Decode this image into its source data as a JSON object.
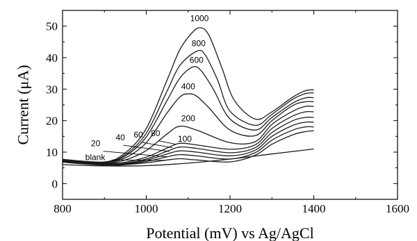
{
  "chart_data": {
    "type": "line",
    "title": "",
    "xlabel": "Potential (mV) vs Ag/AgCl",
    "ylabel": "Current (μA)",
    "xlim": [
      800,
      1600
    ],
    "ylim": [
      -5,
      55
    ],
    "xticks": [
      800,
      1000,
      1200,
      1400,
      1600
    ],
    "yticks": [
      0,
      10,
      20,
      30,
      40,
      50
    ],
    "grid": false,
    "legend": "none",
    "line_color": "#1a1a1a",
    "series": [
      {
        "name": "blank",
        "x": [
          800,
          900,
          1000,
          1100,
          1200,
          1300,
          1400
        ],
        "y": [
          6.0,
          5.6,
          5.7,
          6.5,
          7.8,
          9.4,
          11.0
        ]
      },
      {
        "name": "20",
        "x": [
          800,
          900,
          950,
          1000,
          1050,
          1080,
          1120,
          1200,
          1260,
          1300,
          1350,
          1380,
          1400
        ],
        "y": [
          6.8,
          5.8,
          6.0,
          6.6,
          7.5,
          7.9,
          7.5,
          6.9,
          9.0,
          12.5,
          15.5,
          16.5,
          16.8
        ]
      },
      {
        "name": "40",
        "x": [
          800,
          900,
          950,
          1000,
          1050,
          1080,
          1120,
          1200,
          1260,
          1300,
          1350,
          1380,
          1400
        ],
        "y": [
          6.9,
          5.9,
          6.1,
          7.0,
          8.5,
          9.2,
          8.8,
          7.8,
          9.8,
          13.8,
          17.0,
          18.0,
          18.0
        ]
      },
      {
        "name": "60",
        "x": [
          800,
          900,
          950,
          1000,
          1050,
          1080,
          1120,
          1200,
          1260,
          1300,
          1350,
          1380,
          1400
        ],
        "y": [
          7.0,
          6.0,
          6.3,
          7.4,
          9.4,
          10.4,
          10.0,
          8.8,
          10.6,
          15.0,
          18.5,
          19.5,
          19.5
        ]
      },
      {
        "name": "80",
        "x": [
          800,
          900,
          950,
          1000,
          1050,
          1080,
          1120,
          1200,
          1260,
          1300,
          1350,
          1380,
          1400
        ],
        "y": [
          7.1,
          6.1,
          6.5,
          7.8,
          10.3,
          11.6,
          11.2,
          9.8,
          11.4,
          16.2,
          20.0,
          21.0,
          21.0
        ]
      },
      {
        "name": "100",
        "x": [
          800,
          900,
          950,
          1000,
          1050,
          1080,
          1120,
          1200,
          1260,
          1300,
          1350,
          1380,
          1400
        ],
        "y": [
          7.2,
          6.2,
          6.8,
          8.4,
          11.3,
          12.8,
          12.3,
          10.9,
          12.3,
          17.5,
          21.5,
          22.8,
          22.8
        ]
      },
      {
        "name": "200",
        "x": [
          800,
          900,
          950,
          1000,
          1050,
          1080,
          1120,
          1200,
          1260,
          1300,
          1350,
          1380,
          1400
        ],
        "y": [
          7.3,
          6.3,
          7.5,
          10.5,
          15.8,
          18.2,
          17.0,
          13.0,
          13.3,
          18.8,
          23.0,
          24.5,
          24.5
        ]
      },
      {
        "name": "400",
        "x": [
          800,
          900,
          950,
          1000,
          1050,
          1080,
          1100,
          1120,
          1150,
          1200,
          1260,
          1300,
          1350,
          1380,
          1400
        ],
        "y": [
          7.4,
          6.5,
          8.2,
          13.0,
          22.5,
          27.5,
          28.5,
          27.8,
          24.0,
          17.0,
          15.2,
          20.0,
          24.8,
          26.0,
          26.0
        ]
      },
      {
        "name": "600",
        "x": [
          800,
          900,
          950,
          1000,
          1050,
          1080,
          1110,
          1130,
          1160,
          1200,
          1260,
          1300,
          1350,
          1380,
          1400
        ],
        "y": [
          7.5,
          6.7,
          8.8,
          14.8,
          26.5,
          33.5,
          37.0,
          36.0,
          30.0,
          20.5,
          17.0,
          21.0,
          25.6,
          27.2,
          27.3
        ]
      },
      {
        "name": "800",
        "x": [
          800,
          900,
          950,
          1000,
          1050,
          1080,
          1120,
          1140,
          1170,
          1200,
          1260,
          1300,
          1350,
          1380,
          1400
        ],
        "y": [
          7.6,
          6.8,
          9.2,
          16.0,
          29.5,
          37.5,
          42.0,
          41.0,
          33.0,
          23.0,
          18.5,
          22.0,
          26.8,
          28.6,
          28.8
        ]
      },
      {
        "name": "1000",
        "x": [
          800,
          900,
          950,
          1000,
          1050,
          1080,
          1110,
          1130,
          1150,
          1180,
          1210,
          1260,
          1300,
          1350,
          1380,
          1400
        ],
        "y": [
          7.7,
          6.9,
          9.8,
          17.5,
          33.0,
          42.5,
          48.0,
          49.5,
          47.0,
          37.0,
          26.5,
          20.5,
          22.8,
          27.5,
          29.5,
          29.8
        ]
      }
    ],
    "annotations": [
      {
        "text": "1000",
        "x": 1127,
        "y": 51.6
      },
      {
        "text": "800",
        "x": 1125,
        "y": 43.6
      },
      {
        "text": "600",
        "x": 1120,
        "y": 38.3
      },
      {
        "text": "400",
        "x": 1100,
        "y": 30.0
      },
      {
        "text": "200",
        "x": 1100,
        "y": 19.8
      },
      {
        "text": "100",
        "x": 1092,
        "y": 13.3
      },
      {
        "text": "80",
        "x": 1022,
        "y": 15.1
      },
      {
        "text": "60",
        "x": 981,
        "y": 14.6
      },
      {
        "text": "40",
        "x": 938,
        "y": 13.7
      },
      {
        "text": "20",
        "x": 879,
        "y": 11.9
      },
      {
        "text": "blank",
        "x": 878,
        "y": 7.5
      }
    ],
    "leader_lines": [
      {
        "from": [
          1030,
          13.6
        ],
        "to": [
          1070,
          12.5
        ]
      },
      {
        "from": [
          990,
          13.1
        ],
        "to": [
          1062,
          11.4
        ]
      },
      {
        "from": [
          945,
          12.2
        ],
        "to": [
          1055,
          10.2
        ]
      },
      {
        "from": [
          897,
          10.3
        ],
        "to": [
          1050,
          8.5
        ]
      },
      {
        "from": [
          917,
          7.5
        ],
        "to": [
          1045,
          7.4
        ]
      }
    ]
  }
}
